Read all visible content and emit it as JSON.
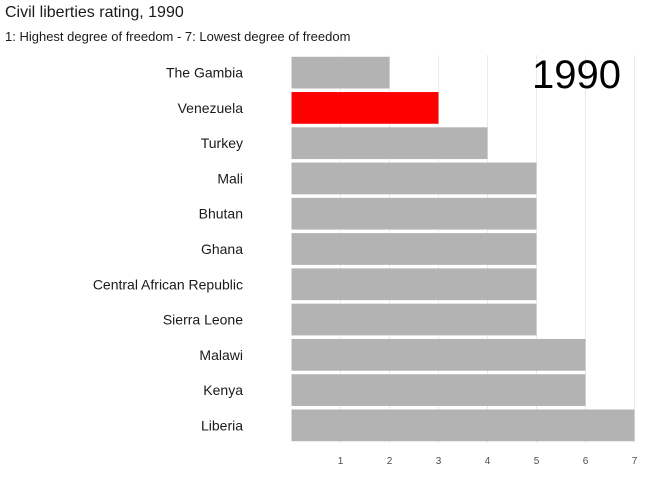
{
  "chart_data": {
    "type": "bar",
    "orientation": "horizontal",
    "title": "Civil liberties rating, 1990",
    "subtitle": "1: Highest degree of freedom - 7: Lowest degree of freedom",
    "year_label": "1990",
    "categories": [
      "The Gambia",
      "Venezuela",
      "Turkey",
      "Mali",
      "Bhutan",
      "Ghana",
      "Central African Republic",
      "Sierra Leone",
      "Malawi",
      "Kenya",
      "Liberia"
    ],
    "values": [
      2,
      3,
      4,
      5,
      5,
      5,
      5,
      5,
      6,
      6,
      7
    ],
    "highlight": "Venezuela",
    "xlim": [
      0,
      7
    ],
    "xticks": [
      1,
      2,
      3,
      4,
      5,
      6,
      7
    ],
    "xlabel": "",
    "ylabel": "",
    "grid": true,
    "legend": "none"
  },
  "colors": {
    "bar": "#b3b3b3",
    "highlight": "#ff0000",
    "grid": "#ebebeb"
  }
}
